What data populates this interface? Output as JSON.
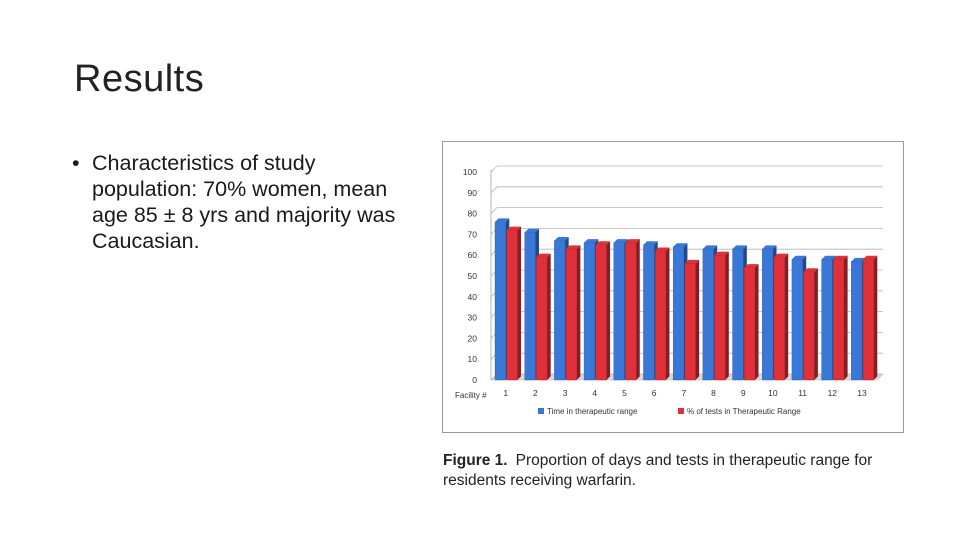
{
  "slide": {
    "title": "Results",
    "bullets": [
      "Characteristics of study population: 70% women, mean age 85 ± 8 yrs and majority was Caucasian."
    ]
  },
  "caption": {
    "label": "Figure 1.",
    "text": "Proportion of days and tests in therapeutic range for residents receiving warfarin."
  },
  "chart_data": {
    "type": "bar",
    "title": "",
    "xlabel": "Facility #",
    "ylabel": "",
    "ylim": [
      0,
      100
    ],
    "yticks": [
      0,
      10,
      20,
      30,
      40,
      50,
      60,
      70,
      80,
      90,
      100
    ],
    "grid": true,
    "legend": "bottom",
    "categories": [
      "1",
      "2",
      "3",
      "4",
      "5",
      "6",
      "7",
      "8",
      "9",
      "10",
      "11",
      "12",
      "13"
    ],
    "series": [
      {
        "name": "Time in therapeutic range",
        "color": "#3a78d8",
        "values": [
          76,
          71,
          67,
          66,
          66,
          65,
          64,
          63,
          63,
          63,
          58,
          58,
          57
        ]
      },
      {
        "name": "% of tests in Therapeutic Range",
        "color": "#e0303a",
        "values": [
          72,
          59,
          63,
          65,
          66,
          62,
          56,
          60,
          54,
          59,
          52,
          58,
          58
        ]
      }
    ]
  }
}
